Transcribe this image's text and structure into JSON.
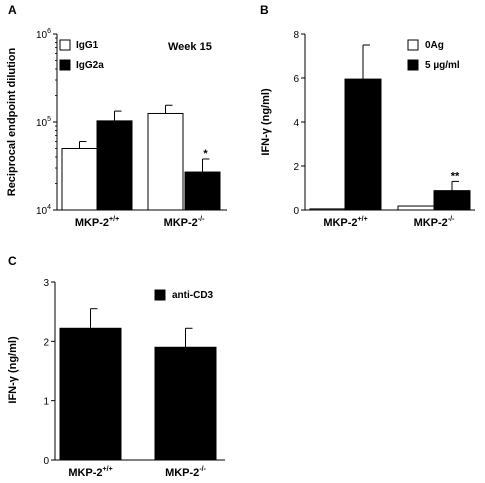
{
  "chart_data": [
    {
      "panel": "A",
      "type": "bar",
      "scale": "log",
      "categories": [
        "MKP-2",
        "MKP-2"
      ],
      "category_superscripts": [
        "+/+",
        "-/-"
      ],
      "ylabel": "Reciprocal endpoint dilution",
      "ylim": [
        10000,
        1000000
      ],
      "yticks": [
        {
          "base": "10",
          "exp": "4",
          "value": 10000
        },
        {
          "base": "10",
          "exp": "5",
          "value": 100000
        },
        {
          "base": "10",
          "exp": "6",
          "value": 1000000
        }
      ],
      "annotation": "Week 15",
      "legend_position": "top-left",
      "series": [
        {
          "name": "IgG1",
          "fill": "#ffffff",
          "values": [
            50000,
            125000
          ],
          "errors": [
            60000,
            155000
          ]
        },
        {
          "name": "IgG2a",
          "fill": "#000000",
          "values": [
            103000,
            27000
          ],
          "errors": [
            133000,
            38000
          ]
        }
      ],
      "markers": [
        {
          "category": 1,
          "series": 1,
          "text": "*"
        }
      ]
    },
    {
      "panel": "B",
      "type": "bar",
      "scale": "linear",
      "categories": [
        "MKP-2",
        "MKP-2"
      ],
      "category_superscripts": [
        "+/+",
        "-/-"
      ],
      "ylabel": "IFN-γ (ng/ml)",
      "ylim": [
        0,
        8
      ],
      "yticks": [
        {
          "label": "0",
          "value": 0
        },
        {
          "label": "2",
          "value": 2
        },
        {
          "label": "4",
          "value": 4
        },
        {
          "label": "6",
          "value": 6
        },
        {
          "label": "8",
          "value": 8
        }
      ],
      "legend_position": "top-right",
      "series": [
        {
          "name": "0Ag",
          "fill": "#ffffff",
          "values": [
            0.05,
            0.18
          ],
          "errors": [
            null,
            null
          ]
        },
        {
          "name": "5 µg/ml",
          "fill": "#000000",
          "values": [
            5.95,
            0.88
          ],
          "errors": [
            7.5,
            1.3
          ]
        }
      ],
      "markers": [
        {
          "category": 1,
          "series": 1,
          "text": "**"
        }
      ]
    },
    {
      "panel": "C",
      "type": "bar",
      "scale": "linear",
      "categories": [
        "MKP-2",
        "MKP-2"
      ],
      "category_superscripts": [
        "+/+",
        "-/-"
      ],
      "ylabel": "IFN-γ (ng/ml)",
      "ylim": [
        0,
        3
      ],
      "yticks": [
        {
          "label": "0",
          "value": 0
        },
        {
          "label": "1",
          "value": 1
        },
        {
          "label": "2",
          "value": 2
        },
        {
          "label": "3",
          "value": 3
        }
      ],
      "legend_position": "top-right",
      "series": [
        {
          "name": "anti-CD3",
          "fill": "#000000",
          "values": [
            2.22,
            1.9
          ],
          "errors": [
            2.55,
            2.22
          ]
        }
      ],
      "markers": []
    }
  ]
}
